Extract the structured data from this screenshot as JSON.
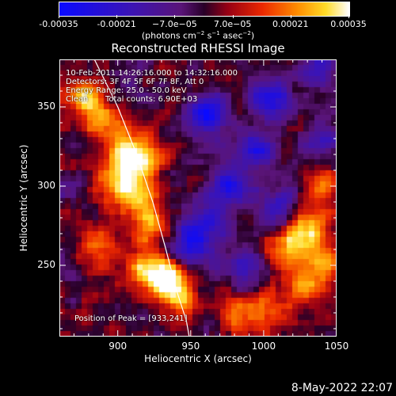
{
  "colorbar": {
    "ticks": [
      "-0.00035",
      "-0.00021",
      "−7.0e−05",
      "7.0e−05",
      "0.00021",
      "0.00035"
    ],
    "unit_main": "(photons cm",
    "unit_sup1": "−2",
    "unit_mid": " s",
    "unit_sup2": "−1",
    "unit_end": " asec",
    "unit_sup3": "−2",
    "unit_close": ")"
  },
  "info": {
    "time": "10-Feb-2011 14:26:16.000 to 14:32:16.000",
    "detectors": "Detectors: 3F 4F 5F 6F 7F 8F, Att 0",
    "energy": "Energy Range: 25.0 - 50.0 keV",
    "clean": "Clean",
    "counts": "Total counts: 6.90E+03",
    "peak": "Position of Peak = [933,241]"
  },
  "footer_date": "8-May-2022 22:07",
  "chart_data": {
    "type": "heatmap",
    "title": "Reconstructed RHESSI Image",
    "xlabel": "Heliocentric X (arcsec)",
    "ylabel": "Heliocentric Y (arcsec)",
    "xlim": [
      860,
      1050
    ],
    "ylim": [
      205,
      380
    ],
    "xticks": [
      900,
      950,
      1000,
      1050
    ],
    "yticks": [
      250,
      300,
      350
    ],
    "colorbar_range": [
      -0.00035,
      0.00035
    ],
    "peak": [
      933,
      241
    ],
    "hot_spots": [
      {
        "x": 876,
        "y": 355,
        "v": 0.78
      },
      {
        "x": 893,
        "y": 340,
        "v": 0.62
      },
      {
        "x": 907,
        "y": 318,
        "v": 0.96
      },
      {
        "x": 900,
        "y": 300,
        "v": 0.66
      },
      {
        "x": 917,
        "y": 295,
        "v": 0.58
      },
      {
        "x": 920,
        "y": 320,
        "v": 0.55
      },
      {
        "x": 922,
        "y": 275,
        "v": 0.62
      },
      {
        "x": 888,
        "y": 262,
        "v": 0.58
      },
      {
        "x": 933,
        "y": 241,
        "v": 1.0
      },
      {
        "x": 918,
        "y": 246,
        "v": 0.6
      },
      {
        "x": 945,
        "y": 228,
        "v": 0.55
      },
      {
        "x": 978,
        "y": 217,
        "v": 0.68
      },
      {
        "x": 1000,
        "y": 222,
        "v": 0.6
      },
      {
        "x": 1030,
        "y": 272,
        "v": 0.9
      },
      {
        "x": 1040,
        "y": 248,
        "v": 0.62
      },
      {
        "x": 1015,
        "y": 260,
        "v": 0.55
      },
      {
        "x": 1043,
        "y": 300,
        "v": 0.5
      },
      {
        "x": 1025,
        "y": 236,
        "v": 0.52
      }
    ],
    "cold_spots": [
      {
        "x": 962,
        "y": 345,
        "v": -0.9
      },
      {
        "x": 1005,
        "y": 355,
        "v": -0.8
      },
      {
        "x": 995,
        "y": 322,
        "v": -0.6
      },
      {
        "x": 975,
        "y": 300,
        "v": -0.8
      },
      {
        "x": 962,
        "y": 275,
        "v": -0.6
      },
      {
        "x": 1010,
        "y": 285,
        "v": -0.55
      },
      {
        "x": 950,
        "y": 262,
        "v": -0.6
      },
      {
        "x": 985,
        "y": 248,
        "v": -0.5
      },
      {
        "x": 1038,
        "y": 375,
        "v": -0.6
      },
      {
        "x": 1042,
        "y": 330,
        "v": -0.5
      },
      {
        "x": 965,
        "y": 215,
        "v": -0.4
      }
    ],
    "limb_curve": [
      [
        884,
        380
      ],
      [
        900,
        350
      ],
      [
        913,
        320
      ],
      [
        924,
        290
      ],
      [
        933,
        260
      ],
      [
        940,
        235
      ],
      [
        947,
        215
      ],
      [
        949,
        205
      ]
    ]
  }
}
